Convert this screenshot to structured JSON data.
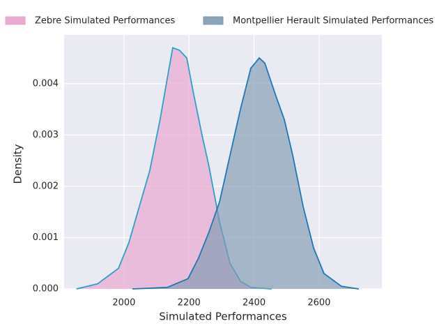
{
  "chart_data": {
    "type": "area",
    "xlabel": "Simulated Performances",
    "ylabel": "Density",
    "xlim": [
      1816,
      2793
    ],
    "ylim": [
      0,
      0.00495
    ],
    "xticks": [
      2000,
      2200,
      2400,
      2600
    ],
    "yticks": [
      {
        "value": 0,
        "label": "0.000"
      },
      {
        "value": 0.001,
        "label": "0.001"
      },
      {
        "value": 0.002,
        "label": "0.002"
      },
      {
        "value": 0.003,
        "label": "0.003"
      },
      {
        "value": 0.004,
        "label": "0.004"
      }
    ],
    "grid": true,
    "legend": "top",
    "series": [
      {
        "name": "Zebre Simulated Performances",
        "color": "#e7a3cc",
        "line_color": "#2ca0c8",
        "x": [
          1854,
          1919,
          1951,
          1983,
          2015,
          2047,
          2079,
          2111,
          2133,
          2150,
          2171,
          2193,
          2214,
          2240,
          2261,
          2294,
          2326,
          2358,
          2390,
          2454
        ],
        "values": [
          0,
          0.0001,
          0.00025,
          0.0004,
          0.0009,
          0.0016,
          0.0023,
          0.0033,
          0.0041,
          0.0047,
          0.00465,
          0.0045,
          0.0038,
          0.003,
          0.0024,
          0.0013,
          0.0005,
          0.00015,
          3e-05,
          0
        ]
      },
      {
        "name": "Montpellier Herault Simulated Performances",
        "color": "#7f9ab2",
        "line_color": "#1f77b4",
        "x": [
          2026,
          2133,
          2197,
          2229,
          2261,
          2294,
          2326,
          2358,
          2390,
          2416,
          2433,
          2465,
          2493,
          2519,
          2551,
          2583,
          2615,
          2669,
          2722
        ],
        "values": [
          0,
          3e-05,
          0.0002,
          0.0006,
          0.0011,
          0.0017,
          0.0026,
          0.0035,
          0.0043,
          0.0045,
          0.0044,
          0.0038,
          0.0033,
          0.0026,
          0.0016,
          0.0008,
          0.0003,
          5e-05,
          0
        ]
      }
    ]
  }
}
